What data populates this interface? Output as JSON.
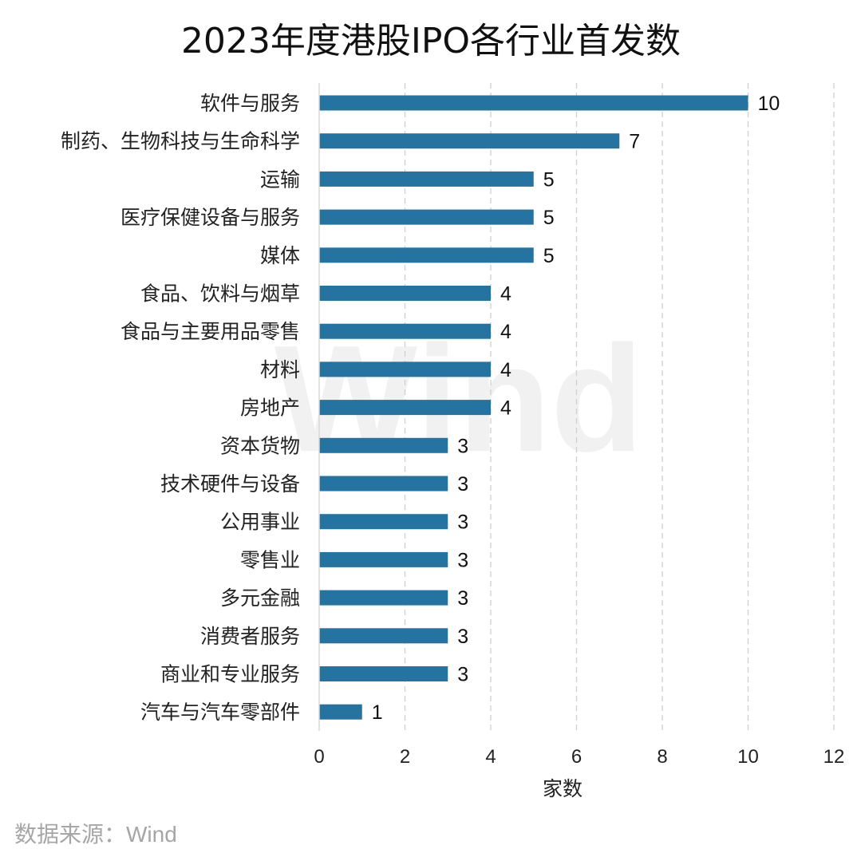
{
  "chart_data": {
    "type": "bar",
    "orientation": "horizontal",
    "title": "2023年度港股IPO各行业首发数",
    "xlabel": "家数",
    "ylabel": "",
    "xlim": [
      0,
      12
    ],
    "x_ticks": [
      0,
      2,
      4,
      6,
      8,
      10,
      12
    ],
    "grid": "vertical-dashed",
    "bar_color": "#2573a0",
    "categories": [
      "软件与服务",
      "制药、生物科技与生命科学",
      "运输",
      "医疗保健设备与服务",
      "媒体",
      "食品、饮料与烟草",
      "食品与主要用品零售",
      "材料",
      "房地产",
      "资本货物",
      "技术硬件与设备",
      "公用事业",
      "零售业",
      "多元金融",
      "消费者服务",
      "商业和专业服务",
      "汽车与汽车零部件"
    ],
    "values": [
      10,
      7,
      5,
      5,
      5,
      4,
      4,
      4,
      4,
      3,
      3,
      3,
      3,
      3,
      3,
      3,
      1
    ],
    "watermark": "Wind"
  },
  "source": {
    "text": "数据来源：Wind"
  }
}
